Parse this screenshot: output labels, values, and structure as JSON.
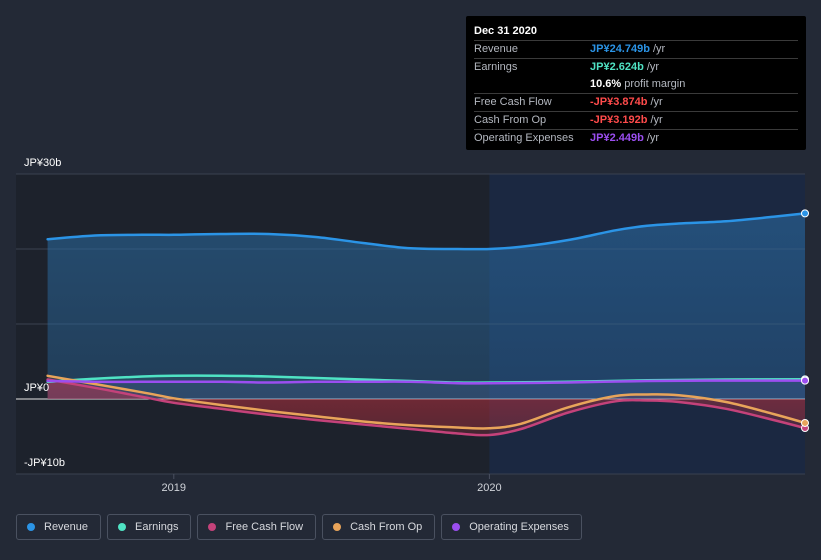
{
  "chart_data": {
    "type": "area",
    "y_unit_labels": [
      "JP¥30b",
      "JP¥0",
      "-JP¥10b"
    ],
    "ylim": [
      -10,
      30
    ],
    "x_ticks": [
      {
        "label": "2019",
        "year": 2019.0
      },
      {
        "label": "2020",
        "year": 2020.0
      }
    ],
    "x_range": [
      2018.5,
      2021.0
    ],
    "highlight_start": 2020.0,
    "series": [
      {
        "name": "Revenue",
        "color": "#2b94e6",
        "x": [
          2018.6,
          2018.75,
          2018.9,
          2019.0,
          2019.15,
          2019.3,
          2019.45,
          2019.6,
          2019.75,
          2019.9,
          2020.0,
          2020.1,
          2020.25,
          2020.4,
          2020.5,
          2020.6,
          2020.75,
          2020.9,
          2021.0
        ],
        "values": [
          21.3,
          21.8,
          21.9,
          21.9,
          22.0,
          22.0,
          21.6,
          20.8,
          20.1,
          20.0,
          20.0,
          20.3,
          21.2,
          22.5,
          23.1,
          23.4,
          23.7,
          24.3,
          24.749
        ]
      },
      {
        "name": "Earnings",
        "color": "#4fe3c4",
        "x": [
          2018.6,
          2018.75,
          2018.9,
          2019.0,
          2019.15,
          2019.3,
          2019.45,
          2019.6,
          2019.75,
          2019.9,
          2020.0,
          2020.25,
          2020.5,
          2020.75,
          2021.0
        ],
        "values": [
          2.3,
          2.7,
          3.0,
          3.1,
          3.1,
          3.0,
          2.8,
          2.6,
          2.4,
          2.2,
          2.2,
          2.3,
          2.5,
          2.6,
          2.624
        ]
      },
      {
        "name": "Free Cash Flow",
        "color": "#c4427a",
        "x": [
          2018.6,
          2018.75,
          2018.9,
          2019.0,
          2019.15,
          2019.3,
          2019.45,
          2019.6,
          2019.75,
          2019.9,
          2020.0,
          2020.1,
          2020.25,
          2020.4,
          2020.5,
          2020.6,
          2020.75,
          2020.9,
          2021.0
        ],
        "values": [
          2.6,
          1.5,
          0.3,
          -0.5,
          -1.3,
          -2.1,
          -2.8,
          -3.4,
          -4.0,
          -4.6,
          -4.8,
          -4.0,
          -1.8,
          -0.3,
          -0.2,
          -0.4,
          -1.3,
          -2.8,
          -3.874
        ]
      },
      {
        "name": "Cash From Op",
        "color": "#e8a45a",
        "x": [
          2018.6,
          2018.75,
          2018.9,
          2019.0,
          2019.15,
          2019.3,
          2019.45,
          2019.6,
          2019.75,
          2019.9,
          2020.0,
          2020.1,
          2020.25,
          2020.4,
          2020.5,
          2020.6,
          2020.75,
          2020.9,
          2021.0
        ],
        "values": [
          3.1,
          2.0,
          0.9,
          0.1,
          -0.8,
          -1.6,
          -2.3,
          -3.0,
          -3.5,
          -3.8,
          -3.9,
          -3.3,
          -1.1,
          0.4,
          0.6,
          0.5,
          -0.4,
          -2.0,
          -3.192
        ]
      },
      {
        "name": "Operating Expenses",
        "color": "#9b4ef0",
        "x": [
          2018.6,
          2018.75,
          2018.9,
          2019.0,
          2019.15,
          2019.3,
          2019.45,
          2019.6,
          2019.75,
          2019.9,
          2020.0,
          2020.25,
          2020.5,
          2020.75,
          2021.0
        ],
        "values": [
          2.4,
          2.3,
          2.3,
          2.3,
          2.3,
          2.2,
          2.3,
          2.3,
          2.3,
          2.1,
          2.1,
          2.2,
          2.4,
          2.45,
          2.449
        ]
      }
    ]
  },
  "tooltip": {
    "date": "Dec 31 2020",
    "rows": [
      {
        "label": "Revenue",
        "value": "JP¥24.749b",
        "unit": "/yr",
        "color": "#2b94e6"
      },
      {
        "label": "Earnings",
        "value": "JP¥2.624b",
        "unit": "/yr",
        "color": "#4fe3c4"
      },
      {
        "label": "",
        "value": "10.6%",
        "unit": "profit margin",
        "color": "#ffffff",
        "sub": true
      },
      {
        "label": "Free Cash Flow",
        "value": "-JP¥3.874b",
        "unit": "/yr",
        "color": "#ff4b4b"
      },
      {
        "label": "Cash From Op",
        "value": "-JP¥3.192b",
        "unit": "/yr",
        "color": "#ff4b4b"
      },
      {
        "label": "Operating Expenses",
        "value": "JP¥2.449b",
        "unit": "/yr",
        "color": "#9b4ef0"
      }
    ]
  },
  "legend": [
    {
      "label": "Revenue",
      "color": "#2b94e6"
    },
    {
      "label": "Earnings",
      "color": "#4fe3c4"
    },
    {
      "label": "Free Cash Flow",
      "color": "#c4427a"
    },
    {
      "label": "Cash From Op",
      "color": "#e8a45a"
    },
    {
      "label": "Operating Expenses",
      "color": "#9b4ef0"
    }
  ]
}
